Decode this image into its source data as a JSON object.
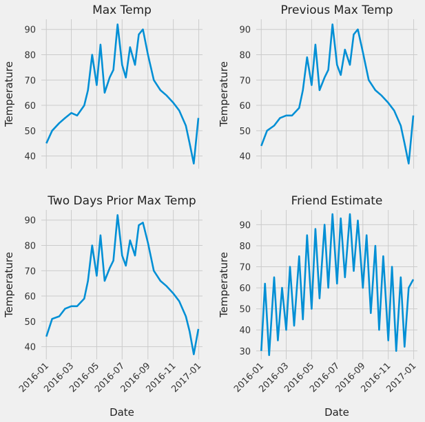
{
  "chart_data": [
    {
      "type": "line",
      "title": "Max Temp",
      "xlabel": "",
      "ylabel": "Temperature",
      "x": [
        "2016-01-01",
        "2016-01-15",
        "2016-02-01",
        "2016-02-15",
        "2016-03-01",
        "2016-03-15",
        "2016-04-01",
        "2016-04-10",
        "2016-04-20",
        "2016-05-01",
        "2016-05-10",
        "2016-05-20",
        "2016-06-01",
        "2016-06-10",
        "2016-06-20",
        "2016-07-01",
        "2016-07-10",
        "2016-07-20",
        "2016-08-01",
        "2016-08-10",
        "2016-08-20",
        "2016-09-01",
        "2016-09-15",
        "2016-10-01",
        "2016-10-15",
        "2016-11-01",
        "2016-11-15",
        "2016-12-01",
        "2016-12-10",
        "2016-12-20",
        "2016-12-31"
      ],
      "y": [
        45,
        50,
        53,
        55,
        57,
        56,
        60,
        66,
        80,
        68,
        84,
        65,
        71,
        74,
        92,
        76,
        71,
        83,
        76,
        88,
        90,
        80,
        70,
        66,
        64,
        61,
        58,
        52,
        45,
        37,
        55
      ],
      "yticks": [
        40,
        50,
        60,
        70,
        80,
        90
      ],
      "xticks": [
        "2016-01",
        "2016-03",
        "2016-05",
        "2016-07",
        "2016-09",
        "2016-11",
        "2017-01"
      ],
      "ylim": [
        35,
        94
      ],
      "xlim": [
        "2015-12-20",
        "2017-01-10"
      ],
      "grid": true
    },
    {
      "type": "line",
      "title": "Previous Max Temp",
      "xlabel": "",
      "ylabel": "Temperature",
      "x": [
        "2016-01-01",
        "2016-01-15",
        "2016-02-01",
        "2016-02-15",
        "2016-03-01",
        "2016-03-15",
        "2016-04-01",
        "2016-04-10",
        "2016-04-20",
        "2016-05-01",
        "2016-05-10",
        "2016-05-20",
        "2016-06-01",
        "2016-06-10",
        "2016-06-20",
        "2016-07-01",
        "2016-07-10",
        "2016-07-20",
        "2016-08-01",
        "2016-08-10",
        "2016-08-20",
        "2016-09-01",
        "2016-09-15",
        "2016-10-01",
        "2016-10-15",
        "2016-11-01",
        "2016-11-15",
        "2016-12-01",
        "2016-12-10",
        "2016-12-20",
        "2016-12-31"
      ],
      "y": [
        44,
        50,
        52,
        55,
        56,
        56,
        59,
        66,
        79,
        68,
        84,
        66,
        71,
        74,
        92,
        76,
        72,
        82,
        76,
        88,
        90,
        81,
        70,
        66,
        64,
        61,
        58,
        52,
        45,
        37,
        56
      ],
      "yticks": [
        40,
        50,
        60,
        70,
        80,
        90
      ],
      "xticks": [
        "2016-01",
        "2016-03",
        "2016-05",
        "2016-07",
        "2016-09",
        "2016-11",
        "2017-01"
      ],
      "ylim": [
        35,
        94
      ],
      "xlim": [
        "2015-12-20",
        "2017-01-10"
      ],
      "grid": true
    },
    {
      "type": "line",
      "title": "Two Days Prior Max Temp",
      "xlabel": "Date",
      "ylabel": "Temperature",
      "x": [
        "2016-01-01",
        "2016-01-15",
        "2016-02-01",
        "2016-02-15",
        "2016-03-01",
        "2016-03-15",
        "2016-04-01",
        "2016-04-10",
        "2016-04-20",
        "2016-05-01",
        "2016-05-10",
        "2016-05-20",
        "2016-06-01",
        "2016-06-10",
        "2016-06-20",
        "2016-07-01",
        "2016-07-10",
        "2016-07-20",
        "2016-08-01",
        "2016-08-10",
        "2016-08-20",
        "2016-09-01",
        "2016-09-15",
        "2016-10-01",
        "2016-10-15",
        "2016-11-01",
        "2016-11-15",
        "2016-12-01",
        "2016-12-10",
        "2016-12-20",
        "2016-12-31"
      ],
      "y": [
        44,
        51,
        52,
        55,
        56,
        56,
        59,
        66,
        80,
        68,
        84,
        66,
        71,
        74,
        92,
        76,
        72,
        82,
        76,
        88,
        89,
        81,
        70,
        66,
        64,
        61,
        58,
        52,
        46,
        37,
        47
      ],
      "yticks": [
        40,
        50,
        60,
        70,
        80,
        90
      ],
      "xticks": [
        "2016-01",
        "2016-03",
        "2016-05",
        "2016-07",
        "2016-09",
        "2016-11",
        "2017-01"
      ],
      "ylim": [
        35,
        94
      ],
      "xlim": [
        "2015-12-20",
        "2017-01-10"
      ],
      "grid": true
    },
    {
      "type": "line",
      "title": "Friend Estimate",
      "xlabel": "Date",
      "ylabel": "Temperature",
      "x": [
        "2016-01-01",
        "2016-01-10",
        "2016-01-20",
        "2016-02-01",
        "2016-02-10",
        "2016-02-20",
        "2016-03-01",
        "2016-03-10",
        "2016-03-20",
        "2016-04-01",
        "2016-04-10",
        "2016-04-20",
        "2016-05-01",
        "2016-05-10",
        "2016-05-20",
        "2016-06-01",
        "2016-06-10",
        "2016-06-20",
        "2016-07-01",
        "2016-07-10",
        "2016-07-20",
        "2016-08-01",
        "2016-08-10",
        "2016-08-20",
        "2016-09-01",
        "2016-09-10",
        "2016-09-20",
        "2016-10-01",
        "2016-10-10",
        "2016-10-20",
        "2016-11-01",
        "2016-11-10",
        "2016-11-20",
        "2016-12-01",
        "2016-12-10",
        "2016-12-20",
        "2016-12-31"
      ],
      "y": [
        30,
        62,
        28,
        65,
        35,
        60,
        40,
        70,
        42,
        75,
        45,
        85,
        50,
        88,
        55,
        90,
        60,
        95,
        62,
        93,
        65,
        95,
        68,
        92,
        60,
        85,
        48,
        80,
        40,
        75,
        35,
        70,
        30,
        65,
        32,
        60,
        64
      ],
      "yticks": [
        30,
        40,
        50,
        60,
        70,
        80,
        90
      ],
      "xticks": [
        "2016-01",
        "2016-03",
        "2016-05",
        "2016-07",
        "2016-09",
        "2016-11",
        "2017-01"
      ],
      "ylim": [
        26,
        97
      ],
      "xlim": [
        "2015-12-20",
        "2017-01-10"
      ],
      "grid": true
    }
  ]
}
